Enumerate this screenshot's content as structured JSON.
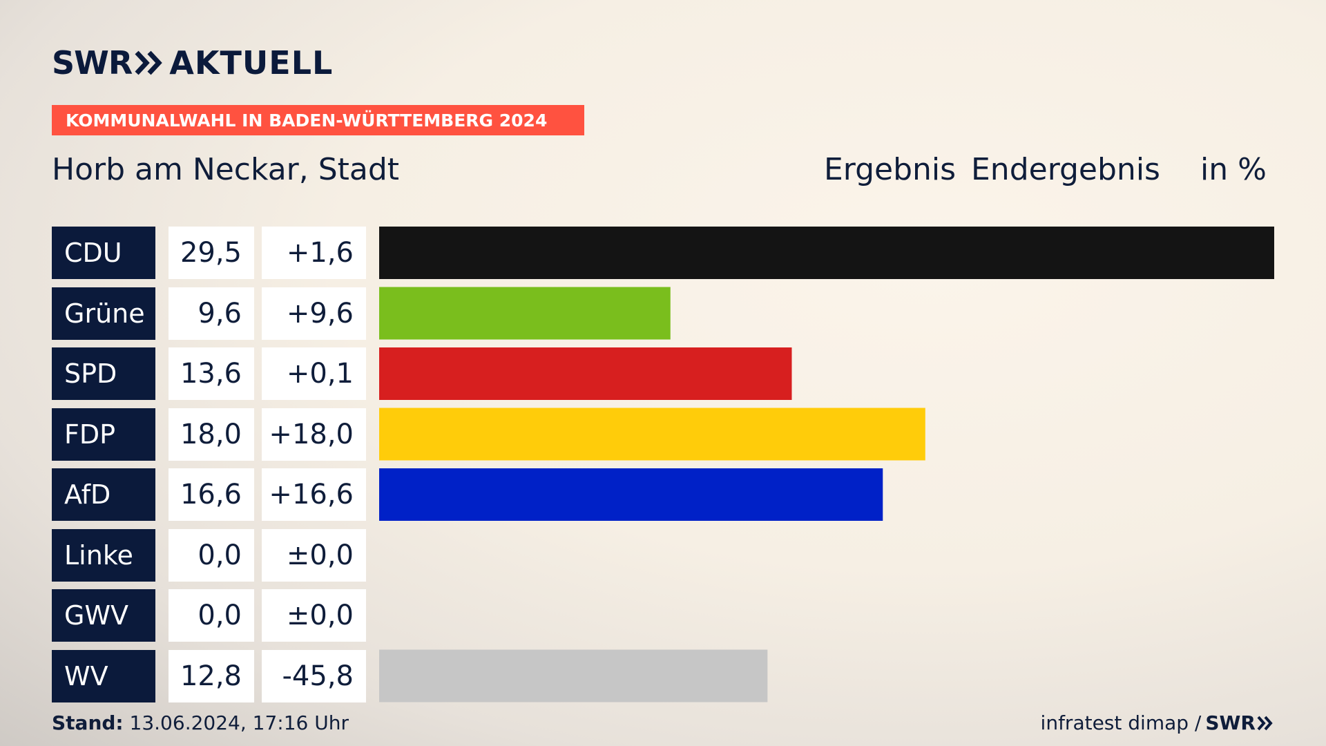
{
  "brand": {
    "swr": "SWR",
    "aktuell": "AKTUELL"
  },
  "banner": "KOMMUNALWAHL IN BADEN-WÜRTTEMBERG 2024",
  "place": "Horb am Neckar, Stadt",
  "headers": {
    "result": "Ergebnis",
    "final": "Endergebnis",
    "unit": "in %"
  },
  "rows": [
    {
      "party": "CDU",
      "value": "29,5",
      "diff": "+1,6"
    },
    {
      "party": "Grüne",
      "value": "9,6",
      "diff": "+9,6"
    },
    {
      "party": "SPD",
      "value": "13,6",
      "diff": "+0,1"
    },
    {
      "party": "FDP",
      "value": "18,0",
      "diff": "+18,0"
    },
    {
      "party": "AfD",
      "value": "16,6",
      "diff": "+16,6"
    },
    {
      "party": "Linke",
      "value": "0,0",
      "diff": "±0,0"
    },
    {
      "party": "GWV",
      "value": "0,0",
      "diff": "±0,0"
    },
    {
      "party": "WV",
      "value": "12,8",
      "diff": "-45,8"
    }
  ],
  "chart_data": {
    "type": "bar",
    "categories": [
      "CDU",
      "Grüne",
      "SPD",
      "FDP",
      "AfD",
      "Linke",
      "GWV",
      "WV"
    ],
    "values": [
      29.5,
      9.6,
      13.6,
      18.0,
      16.6,
      0.0,
      0.0,
      12.8
    ],
    "changes": [
      1.6,
      9.6,
      0.1,
      18.0,
      16.6,
      0.0,
      0.0,
      -45.8
    ],
    "colors": [
      "#141414",
      "#7abe1d",
      "#d71f1f",
      "#ffcc0a",
      "#0021c7",
      "#be3075",
      "#9a9a9a",
      "#c6c6c6"
    ],
    "ylim": [
      0,
      29.5
    ]
  },
  "footer": {
    "stand_label": "Stand:",
    "stand_value": "13.06.2024, 17:16 Uhr",
    "source": "infratest dimap /",
    "source_brand": "SWR"
  }
}
